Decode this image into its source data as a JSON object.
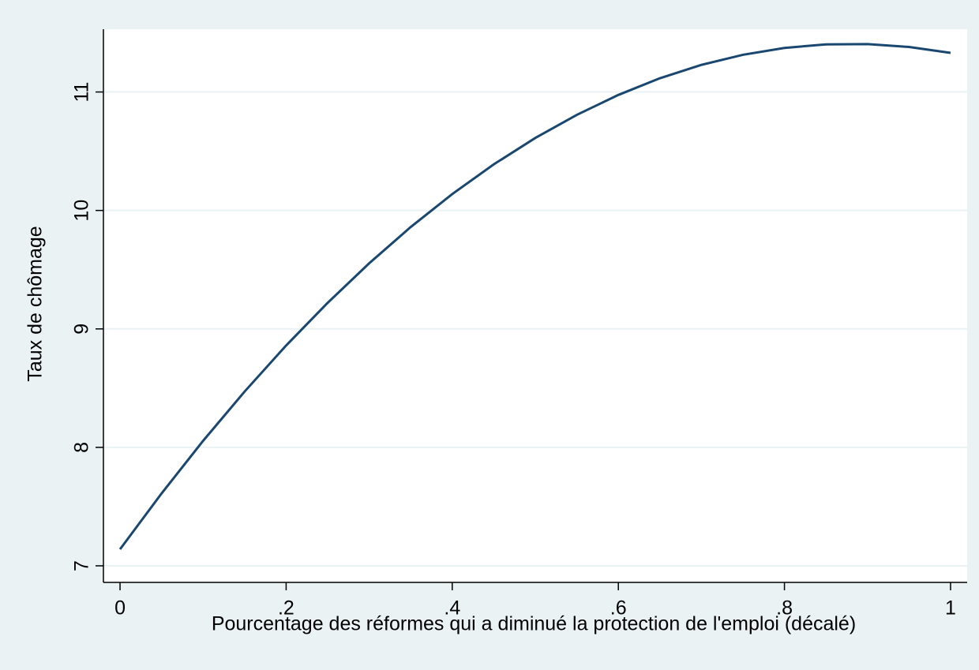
{
  "chart_data": {
    "type": "line",
    "x_label": "Pourcentage des réformes qui a diminué la protection de l'emploi (décalé)",
    "y_label": "Taux de chômage",
    "x": [
      0,
      0.05,
      0.1,
      0.15,
      0.2,
      0.25,
      0.3,
      0.35,
      0.4,
      0.45,
      0.5,
      0.55,
      0.6,
      0.65,
      0.7,
      0.75,
      0.8,
      0.85,
      0.9,
      0.95,
      1
    ],
    "series": [
      {
        "color": "#1a476f",
        "values": [
          7.14,
          7.611,
          8.055,
          8.471,
          8.86,
          9.22,
          9.554,
          9.86,
          10.138,
          10.389,
          10.612,
          10.807,
          10.975,
          11.116,
          11.229,
          11.314,
          11.372,
          11.402,
          11.404,
          11.38,
          11.33
        ]
      }
    ],
    "xlim": [
      -0.02,
      1.02
    ],
    "ylim": [
      6.86,
      11.53
    ],
    "xticks": [
      0,
      {
        "value": 0.2,
        "label": ".2"
      },
      {
        "value": 0.4,
        "label": ".4"
      },
      {
        "value": 0.6,
        "label": ".6"
      },
      {
        "value": 0.8,
        "label": ".8"
      },
      1
    ],
    "yticks": [
      7,
      8,
      9,
      10,
      11
    ],
    "grid": true
  }
}
